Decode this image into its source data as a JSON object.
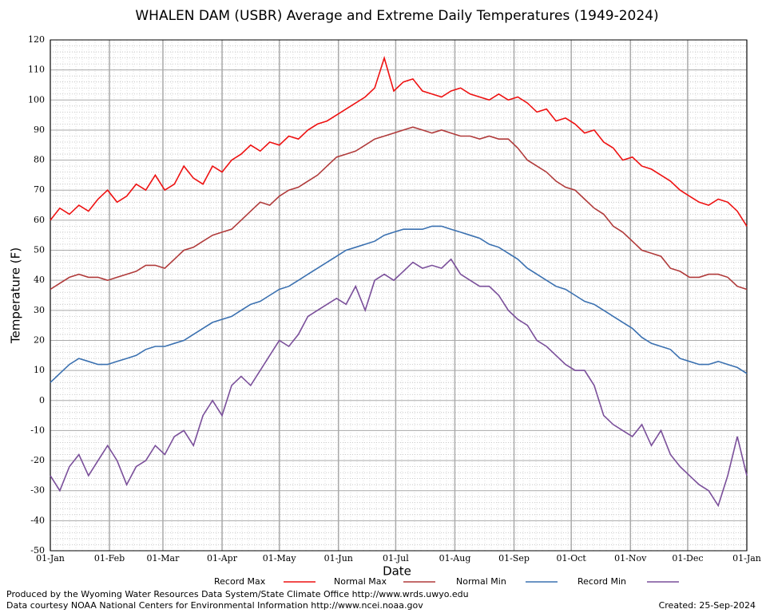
{
  "chart_data": {
    "type": "line",
    "title": "WHALEN DAM (USBR) Average and Extreme Daily Temperatures (1949-2024)",
    "x_label": "Date",
    "y_label": "Temperature (F)",
    "x": [
      0,
      5,
      10,
      15,
      20,
      25,
      30,
      35,
      40,
      45,
      50,
      55,
      60,
      65,
      70,
      75,
      80,
      85,
      90,
      95,
      100,
      105,
      110,
      115,
      120,
      125,
      130,
      135,
      140,
      145,
      150,
      155,
      160,
      165,
      170,
      175,
      180,
      185,
      190,
      195,
      200,
      205,
      210,
      215,
      220,
      225,
      230,
      235,
      240,
      245,
      250,
      255,
      260,
      265,
      270,
      275,
      280,
      285,
      290,
      295,
      300,
      305,
      310,
      315,
      320,
      325,
      330,
      335,
      340,
      345,
      350,
      355,
      360,
      365
    ],
    "xlim": [
      0,
      365
    ],
    "xticks": [
      {
        "value": 0,
        "label": "01-Jan"
      },
      {
        "value": 31,
        "label": "01-Feb"
      },
      {
        "value": 59,
        "label": "01-Mar"
      },
      {
        "value": 90,
        "label": "01-Apr"
      },
      {
        "value": 120,
        "label": "01-May"
      },
      {
        "value": 151,
        "label": "01-Jun"
      },
      {
        "value": 181,
        "label": "01-Jul"
      },
      {
        "value": 212,
        "label": "01-Aug"
      },
      {
        "value": 243,
        "label": "01-Sep"
      },
      {
        "value": 273,
        "label": "01-Oct"
      },
      {
        "value": 304,
        "label": "01-Nov"
      },
      {
        "value": 334,
        "label": "01-Dec"
      },
      {
        "value": 365,
        "label": "01-Jan"
      }
    ],
    "ylim": [
      -50,
      120
    ],
    "yticks": [
      -50,
      -40,
      -30,
      -20,
      -10,
      0,
      10,
      20,
      30,
      40,
      50,
      60,
      70,
      80,
      90,
      100,
      110,
      120
    ],
    "grid": true,
    "series": [
      {
        "name": "Record Max",
        "color": "#ee1111",
        "values": [
          60,
          64,
          62,
          65,
          63,
          67,
          70,
          66,
          68,
          72,
          70,
          75,
          70,
          72,
          78,
          74,
          72,
          78,
          76,
          80,
          82,
          85,
          83,
          86,
          85,
          88,
          87,
          90,
          92,
          93,
          95,
          97,
          99,
          101,
          104,
          114,
          103,
          106,
          107,
          103,
          102,
          101,
          103,
          104,
          102,
          101,
          100,
          102,
          100,
          101,
          99,
          96,
          97,
          93,
          94,
          92,
          89,
          90,
          86,
          84,
          80,
          81,
          78,
          77,
          75,
          73,
          70,
          68,
          66,
          65,
          67,
          66,
          63,
          58
        ]
      },
      {
        "name": "Normal Max",
        "color": "#b03a3a",
        "values": [
          37,
          39,
          41,
          42,
          41,
          41,
          40,
          41,
          42,
          43,
          45,
          45,
          44,
          47,
          50,
          51,
          53,
          55,
          56,
          57,
          60,
          63,
          66,
          65,
          68,
          70,
          71,
          73,
          75,
          78,
          81,
          82,
          83,
          85,
          87,
          88,
          89,
          90,
          91,
          90,
          89,
          90,
          89,
          88,
          88,
          87,
          88,
          87,
          87,
          84,
          80,
          78,
          76,
          73,
          71,
          70,
          67,
          64,
          62,
          58,
          56,
          53,
          50,
          49,
          48,
          44,
          43,
          41,
          41,
          42,
          42,
          41,
          38,
          37
        ]
      },
      {
        "name": "Normal Min",
        "color": "#3a70b0",
        "values": [
          6,
          9,
          12,
          14,
          13,
          12,
          12,
          13,
          14,
          15,
          17,
          18,
          18,
          19,
          20,
          22,
          24,
          26,
          27,
          28,
          30,
          32,
          33,
          35,
          37,
          38,
          40,
          42,
          44,
          46,
          48,
          50,
          51,
          52,
          53,
          55,
          56,
          57,
          57,
          57,
          58,
          58,
          57,
          56,
          55,
          54,
          52,
          51,
          49,
          47,
          44,
          42,
          40,
          38,
          37,
          35,
          33,
          32,
          30,
          28,
          26,
          24,
          21,
          19,
          18,
          17,
          14,
          13,
          12,
          12,
          13,
          12,
          11,
          9
        ]
      },
      {
        "name": "Record Min",
        "color": "#7a4f9a",
        "values": [
          -25,
          -30,
          -22,
          -18,
          -25,
          -20,
          -15,
          -20,
          -28,
          -22,
          -20,
          -15,
          -18,
          -12,
          -10,
          -15,
          -5,
          0,
          -5,
          5,
          8,
          5,
          10,
          15,
          20,
          18,
          22,
          28,
          30,
          32,
          34,
          32,
          38,
          30,
          40,
          42,
          40,
          43,
          46,
          44,
          45,
          44,
          47,
          42,
          40,
          38,
          38,
          35,
          30,
          27,
          25,
          20,
          18,
          15,
          12,
          10,
          10,
          5,
          -5,
          -8,
          -10,
          -12,
          -8,
          -15,
          -10,
          -18,
          -22,
          -25,
          -28,
          -30,
          -35,
          -25,
          -12,
          -25
        ]
      }
    ],
    "footer": [
      "Produced by the Wyoming Water Resources Data System/State Climate Office http://www.wrds.uwyo.edu",
      "Data courtesy NOAA National Centers for Environmental Information http://www.ncei.noaa.gov"
    ],
    "created": "Created:  25-Sep-2024"
  }
}
